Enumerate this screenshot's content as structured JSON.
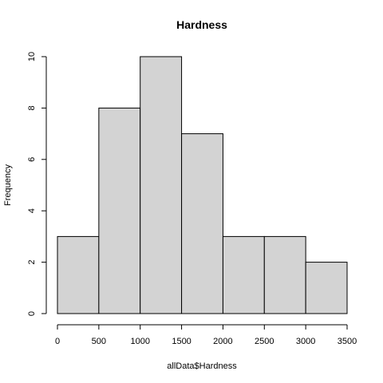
{
  "chart_data": {
    "type": "bar",
    "title": "Hardness",
    "xlabel": "allData$Hardness",
    "ylabel": "Frequency",
    "bins": [
      {
        "start": 0,
        "end": 500,
        "count": 3
      },
      {
        "start": 500,
        "end": 1000,
        "count": 8
      },
      {
        "start": 1000,
        "end": 1500,
        "count": 10
      },
      {
        "start": 1500,
        "end": 2000,
        "count": 7
      },
      {
        "start": 2000,
        "end": 2500,
        "count": 3
      },
      {
        "start": 2500,
        "end": 3000,
        "count": 3
      },
      {
        "start": 3000,
        "end": 3500,
        "count": 2
      }
    ],
    "xlim": [
      0,
      3500
    ],
    "ylim": [
      0,
      10
    ],
    "x_ticks": [
      "0",
      "500",
      "1000",
      "1500",
      "2000",
      "2500",
      "3000",
      "3500"
    ],
    "y_ticks": [
      "0",
      "2",
      "4",
      "6",
      "8",
      "10"
    ],
    "bar_fill": "#d3d3d3",
    "bar_stroke": "#000000",
    "grid": false,
    "legend": "none"
  }
}
